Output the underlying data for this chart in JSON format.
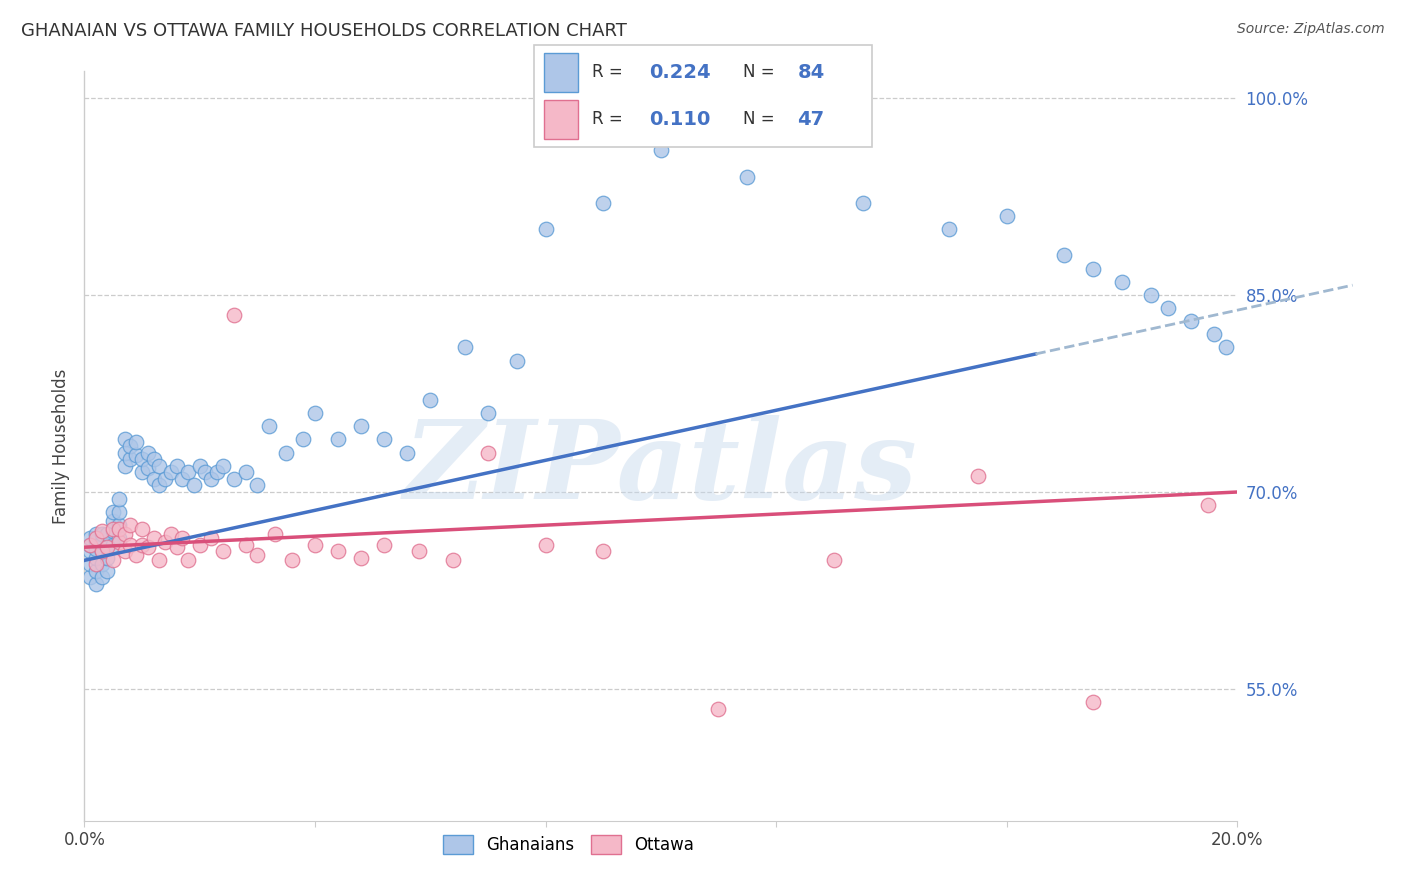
{
  "title": "GHANAIAN VS OTTAWA FAMILY HOUSEHOLDS CORRELATION CHART",
  "source": "Source: ZipAtlas.com",
  "ylabel": "Family Households",
  "xlim": [
    0.0,
    0.2
  ],
  "ylim": [
    0.45,
    1.02
  ],
  "ytick_positions": [
    0.55,
    0.7,
    0.85,
    1.0
  ],
  "ytick_labels": [
    "55.0%",
    "70.0%",
    "85.0%",
    "100.0%"
  ],
  "xtick_positions": [
    0.0,
    0.04,
    0.08,
    0.12,
    0.16,
    0.2
  ],
  "xtick_labels": [
    "0.0%",
    "",
    "",
    "",
    "",
    "20.0%"
  ],
  "ghanaian_R": 0.224,
  "ghanaian_N": 84,
  "ottawa_R": 0.11,
  "ottawa_N": 47,
  "ghanaian_fill": "#aec6e8",
  "ghanaian_edge": "#5b9bd5",
  "ottawa_fill": "#f5b8c8",
  "ottawa_edge": "#e07090",
  "trend_blue": "#4472c4",
  "trend_pink": "#d94f7a",
  "trend_dash_color": "#a0b8d0",
  "watermark": "ZIPatlas",
  "g_line_x0": 0.0,
  "g_line_y0": 0.648,
  "g_line_x1": 0.165,
  "g_line_y1": 0.805,
  "o_line_x0": 0.0,
  "o_line_y0": 0.658,
  "o_line_x1": 0.2,
  "o_line_y1": 0.7,
  "ghanaian_x": [
    0.001,
    0.001,
    0.001,
    0.001,
    0.001,
    0.002,
    0.002,
    0.002,
    0.002,
    0.002,
    0.002,
    0.003,
    0.003,
    0.003,
    0.003,
    0.003,
    0.004,
    0.004,
    0.004,
    0.004,
    0.005,
    0.005,
    0.005,
    0.005,
    0.006,
    0.006,
    0.006,
    0.006,
    0.007,
    0.007,
    0.007,
    0.008,
    0.008,
    0.009,
    0.009,
    0.01,
    0.01,
    0.011,
    0.011,
    0.012,
    0.012,
    0.013,
    0.013,
    0.014,
    0.015,
    0.016,
    0.017,
    0.018,
    0.019,
    0.02,
    0.021,
    0.022,
    0.023,
    0.024,
    0.026,
    0.028,
    0.03,
    0.032,
    0.035,
    0.038,
    0.04,
    0.044,
    0.048,
    0.052,
    0.056,
    0.06,
    0.066,
    0.07,
    0.075,
    0.08,
    0.09,
    0.1,
    0.115,
    0.135,
    0.15,
    0.16,
    0.17,
    0.175,
    0.18,
    0.185,
    0.188,
    0.192,
    0.196,
    0.198
  ],
  "ghanaian_y": [
    0.635,
    0.645,
    0.655,
    0.66,
    0.665,
    0.63,
    0.64,
    0.65,
    0.657,
    0.663,
    0.668,
    0.635,
    0.645,
    0.655,
    0.662,
    0.668,
    0.64,
    0.65,
    0.66,
    0.668,
    0.66,
    0.67,
    0.678,
    0.685,
    0.665,
    0.675,
    0.685,
    0.695,
    0.72,
    0.73,
    0.74,
    0.725,
    0.735,
    0.728,
    0.738,
    0.715,
    0.725,
    0.718,
    0.73,
    0.71,
    0.725,
    0.705,
    0.72,
    0.71,
    0.715,
    0.72,
    0.71,
    0.715,
    0.705,
    0.72,
    0.715,
    0.71,
    0.715,
    0.72,
    0.71,
    0.715,
    0.705,
    0.75,
    0.73,
    0.74,
    0.76,
    0.74,
    0.75,
    0.74,
    0.73,
    0.77,
    0.81,
    0.76,
    0.8,
    0.9,
    0.92,
    0.96,
    0.94,
    0.92,
    0.9,
    0.91,
    0.88,
    0.87,
    0.86,
    0.85,
    0.84,
    0.83,
    0.82,
    0.81
  ],
  "ottawa_x": [
    0.001,
    0.002,
    0.002,
    0.003,
    0.003,
    0.004,
    0.005,
    0.005,
    0.006,
    0.006,
    0.007,
    0.007,
    0.008,
    0.008,
    0.009,
    0.01,
    0.01,
    0.011,
    0.012,
    0.013,
    0.014,
    0.015,
    0.016,
    0.017,
    0.018,
    0.02,
    0.022,
    0.024,
    0.026,
    0.028,
    0.03,
    0.033,
    0.036,
    0.04,
    0.044,
    0.048,
    0.052,
    0.058,
    0.064,
    0.07,
    0.08,
    0.09,
    0.11,
    0.13,
    0.155,
    0.175,
    0.195
  ],
  "ottawa_y": [
    0.66,
    0.645,
    0.665,
    0.655,
    0.67,
    0.658,
    0.672,
    0.648,
    0.662,
    0.672,
    0.655,
    0.668,
    0.66,
    0.675,
    0.652,
    0.66,
    0.672,
    0.658,
    0.665,
    0.648,
    0.662,
    0.668,
    0.658,
    0.665,
    0.648,
    0.66,
    0.665,
    0.655,
    0.835,
    0.66,
    0.652,
    0.668,
    0.648,
    0.66,
    0.655,
    0.65,
    0.66,
    0.655,
    0.648,
    0.73,
    0.66,
    0.655,
    0.535,
    0.648,
    0.712,
    0.54,
    0.69
  ]
}
